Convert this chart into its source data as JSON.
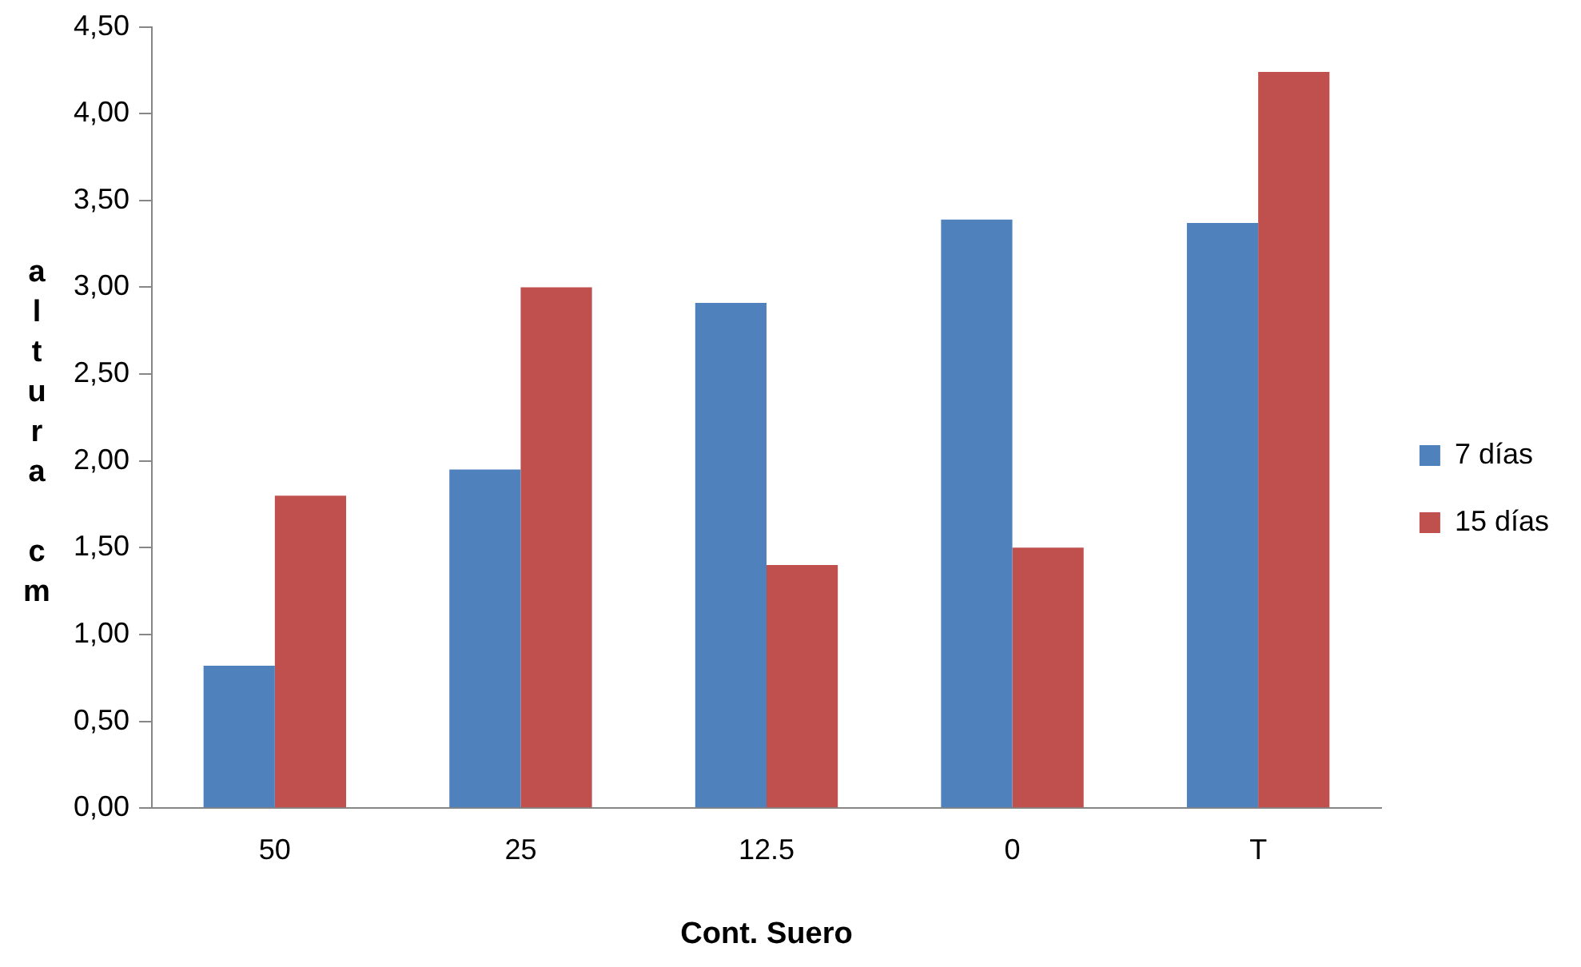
{
  "chart_data": {
    "type": "bar",
    "xlabel": "Cont. Suero",
    "ylabel": "altura cm",
    "categories": [
      "50",
      "25",
      "12.5",
      "0",
      "T"
    ],
    "series": [
      {
        "name": "7 días",
        "color": "#4f81bd",
        "values": [
          0.82,
          1.95,
          2.91,
          3.39,
          3.37
        ]
      },
      {
        "name": "15 días",
        "color": "#c0504d",
        "values": [
          1.8,
          3.0,
          1.4,
          1.5,
          4.24
        ]
      }
    ],
    "ylim": [
      0,
      4.5
    ],
    "yticks": [
      {
        "value": 0,
        "label": "0,00"
      },
      {
        "value": 0.5,
        "label": "0,50"
      },
      {
        "value": 1,
        "label": "1,00"
      },
      {
        "value": 1.5,
        "label": "1,50"
      },
      {
        "value": 2,
        "label": "2,00"
      },
      {
        "value": 2.5,
        "label": "2,50"
      },
      {
        "value": 3,
        "label": "3,00"
      },
      {
        "value": 3.5,
        "label": "3,50"
      },
      {
        "value": 4,
        "label": "4,00"
      },
      {
        "value": 4.5,
        "label": "4,50"
      }
    ],
    "legend": "right"
  }
}
